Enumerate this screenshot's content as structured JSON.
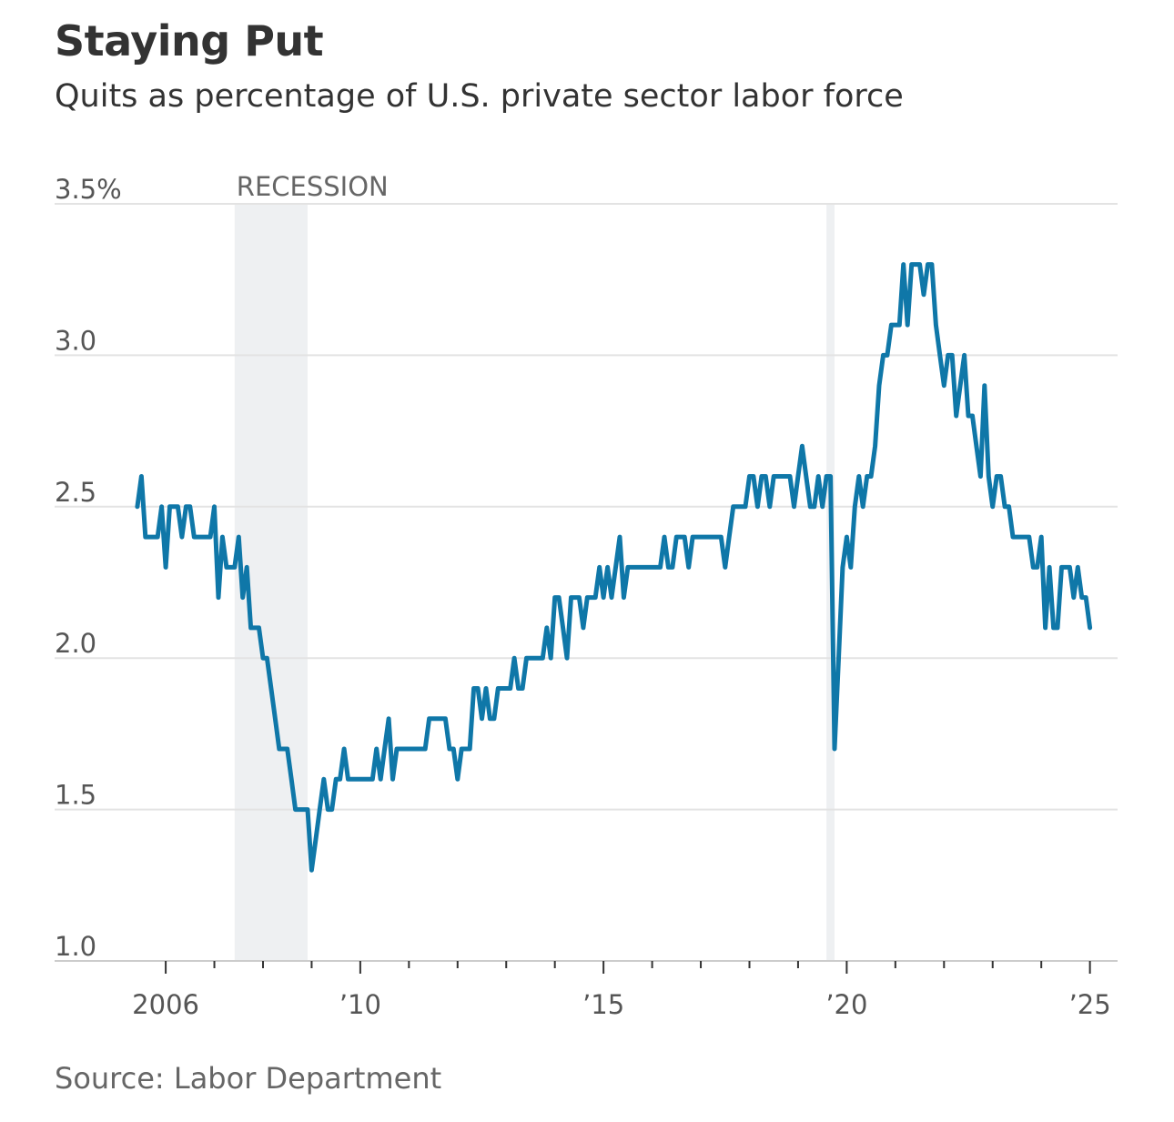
{
  "title": "Staying Put",
  "subtitle": "Quits as percentage of U.S. private sector labor force",
  "source": "Source: Labor Department",
  "chart_data": {
    "type": "line",
    "title": "Staying Put",
    "subtitle": "Quits as percentage of U.S. private sector labor force",
    "xlabel": "",
    "ylabel": "",
    "ylim": [
      1.0,
      3.5
    ],
    "xlim": [
      "2005-09",
      "2025-09"
    ],
    "yticks": [
      {
        "value": 3.5,
        "label": "3.5%"
      },
      {
        "value": 3.0,
        "label": "3.0"
      },
      {
        "value": 2.5,
        "label": "2.5"
      },
      {
        "value": 2.0,
        "label": "2.0"
      },
      {
        "value": 1.5,
        "label": "1.5"
      },
      {
        "value": 1.0,
        "label": "1.0"
      }
    ],
    "xticks": [
      {
        "value": "2006-07",
        "label": "2006"
      },
      {
        "value": "2010-07",
        "label": "’10"
      },
      {
        "value": "2015-07",
        "label": "’15"
      },
      {
        "value": "2020-07",
        "label": "’20"
      },
      {
        "value": "2025-07",
        "label": "’25"
      }
    ],
    "grid": true,
    "recessions": [
      {
        "start": "2007-12",
        "end": "2009-06",
        "label": "RECESSION"
      },
      {
        "start": "2020-02",
        "end": "2020-04",
        "label": ""
      }
    ],
    "series": [
      {
        "name": "",
        "color": "#0f77a8",
        "points": [
          [
            "2005-12",
            2.5
          ],
          [
            "2006-01",
            2.6
          ],
          [
            "2006-02",
            2.4
          ],
          [
            "2006-03",
            2.4
          ],
          [
            "2006-04",
            2.4
          ],
          [
            "2006-05",
            2.4
          ],
          [
            "2006-06",
            2.5
          ],
          [
            "2006-07",
            2.3
          ],
          [
            "2006-08",
            2.5
          ],
          [
            "2006-09",
            2.5
          ],
          [
            "2006-10",
            2.5
          ],
          [
            "2006-11",
            2.4
          ],
          [
            "2006-12",
            2.5
          ],
          [
            "2007-01",
            2.5
          ],
          [
            "2007-02",
            2.4
          ],
          [
            "2007-03",
            2.4
          ],
          [
            "2007-04",
            2.4
          ],
          [
            "2007-05",
            2.4
          ],
          [
            "2007-06",
            2.4
          ],
          [
            "2007-07",
            2.5
          ],
          [
            "2007-08",
            2.2
          ],
          [
            "2007-09",
            2.4
          ],
          [
            "2007-10",
            2.3
          ],
          [
            "2007-11",
            2.3
          ],
          [
            "2007-12",
            2.3
          ],
          [
            "2008-01",
            2.4
          ],
          [
            "2008-02",
            2.2
          ],
          [
            "2008-03",
            2.3
          ],
          [
            "2008-04",
            2.1
          ],
          [
            "2008-05",
            2.1
          ],
          [
            "2008-06",
            2.1
          ],
          [
            "2008-07",
            2.0
          ],
          [
            "2008-08",
            2.0
          ],
          [
            "2008-09",
            1.9
          ],
          [
            "2008-10",
            1.8
          ],
          [
            "2008-11",
            1.7
          ],
          [
            "2008-12",
            1.7
          ],
          [
            "2009-01",
            1.7
          ],
          [
            "2009-02",
            1.6
          ],
          [
            "2009-03",
            1.5
          ],
          [
            "2009-04",
            1.5
          ],
          [
            "2009-05",
            1.5
          ],
          [
            "2009-06",
            1.5
          ],
          [
            "2009-07",
            1.3
          ],
          [
            "2009-08",
            1.4
          ],
          [
            "2009-09",
            1.5
          ],
          [
            "2009-10",
            1.6
          ],
          [
            "2009-11",
            1.5
          ],
          [
            "2009-12",
            1.5
          ],
          [
            "2010-01",
            1.6
          ],
          [
            "2010-02",
            1.6
          ],
          [
            "2010-03",
            1.7
          ],
          [
            "2010-04",
            1.6
          ],
          [
            "2010-05",
            1.6
          ],
          [
            "2010-06",
            1.6
          ],
          [
            "2010-07",
            1.6
          ],
          [
            "2010-08",
            1.6
          ],
          [
            "2010-09",
            1.6
          ],
          [
            "2010-10",
            1.6
          ],
          [
            "2010-11",
            1.7
          ],
          [
            "2010-12",
            1.6
          ],
          [
            "2011-01",
            1.7
          ],
          [
            "2011-02",
            1.8
          ],
          [
            "2011-03",
            1.6
          ],
          [
            "2011-04",
            1.7
          ],
          [
            "2011-05",
            1.7
          ],
          [
            "2011-06",
            1.7
          ],
          [
            "2011-07",
            1.7
          ],
          [
            "2011-08",
            1.7
          ],
          [
            "2011-09",
            1.7
          ],
          [
            "2011-10",
            1.7
          ],
          [
            "2011-11",
            1.7
          ],
          [
            "2011-12",
            1.8
          ],
          [
            "2012-01",
            1.8
          ],
          [
            "2012-02",
            1.8
          ],
          [
            "2012-03",
            1.8
          ],
          [
            "2012-04",
            1.8
          ],
          [
            "2012-05",
            1.7
          ],
          [
            "2012-06",
            1.7
          ],
          [
            "2012-07",
            1.6
          ],
          [
            "2012-08",
            1.7
          ],
          [
            "2012-09",
            1.7
          ],
          [
            "2012-10",
            1.7
          ],
          [
            "2012-11",
            1.9
          ],
          [
            "2012-12",
            1.9
          ],
          [
            "2013-01",
            1.8
          ],
          [
            "2013-02",
            1.9
          ],
          [
            "2013-03",
            1.8
          ],
          [
            "2013-04",
            1.8
          ],
          [
            "2013-05",
            1.9
          ],
          [
            "2013-06",
            1.9
          ],
          [
            "2013-07",
            1.9
          ],
          [
            "2013-08",
            1.9
          ],
          [
            "2013-09",
            2.0
          ],
          [
            "2013-10",
            1.9
          ],
          [
            "2013-11",
            1.9
          ],
          [
            "2013-12",
            2.0
          ],
          [
            "2014-01",
            2.0
          ],
          [
            "2014-02",
            2.0
          ],
          [
            "2014-03",
            2.0
          ],
          [
            "2014-04",
            2.0
          ],
          [
            "2014-05",
            2.1
          ],
          [
            "2014-06",
            2.0
          ],
          [
            "2014-07",
            2.2
          ],
          [
            "2014-08",
            2.2
          ],
          [
            "2014-09",
            2.1
          ],
          [
            "2014-10",
            2.0
          ],
          [
            "2014-11",
            2.2
          ],
          [
            "2014-12",
            2.2
          ],
          [
            "2015-01",
            2.2
          ],
          [
            "2015-02",
            2.1
          ],
          [
            "2015-03",
            2.2
          ],
          [
            "2015-04",
            2.2
          ],
          [
            "2015-05",
            2.2
          ],
          [
            "2015-06",
            2.3
          ],
          [
            "2015-07",
            2.2
          ],
          [
            "2015-08",
            2.3
          ],
          [
            "2015-09",
            2.2
          ],
          [
            "2015-10",
            2.3
          ],
          [
            "2015-11",
            2.4
          ],
          [
            "2015-12",
            2.2
          ],
          [
            "2016-01",
            2.3
          ],
          [
            "2016-02",
            2.3
          ],
          [
            "2016-03",
            2.3
          ],
          [
            "2016-04",
            2.3
          ],
          [
            "2016-05",
            2.3
          ],
          [
            "2016-06",
            2.3
          ],
          [
            "2016-07",
            2.3
          ],
          [
            "2016-08",
            2.3
          ],
          [
            "2016-09",
            2.3
          ],
          [
            "2016-10",
            2.4
          ],
          [
            "2016-11",
            2.3
          ],
          [
            "2016-12",
            2.3
          ],
          [
            "2017-01",
            2.4
          ],
          [
            "2017-02",
            2.4
          ],
          [
            "2017-03",
            2.4
          ],
          [
            "2017-04",
            2.3
          ],
          [
            "2017-05",
            2.4
          ],
          [
            "2017-06",
            2.4
          ],
          [
            "2017-07",
            2.4
          ],
          [
            "2017-08",
            2.4
          ],
          [
            "2017-09",
            2.4
          ],
          [
            "2017-10",
            2.4
          ],
          [
            "2017-11",
            2.4
          ],
          [
            "2017-12",
            2.4
          ],
          [
            "2018-01",
            2.3
          ],
          [
            "2018-02",
            2.4
          ],
          [
            "2018-03",
            2.5
          ],
          [
            "2018-04",
            2.5
          ],
          [
            "2018-05",
            2.5
          ],
          [
            "2018-06",
            2.5
          ],
          [
            "2018-07",
            2.6
          ],
          [
            "2018-08",
            2.6
          ],
          [
            "2018-09",
            2.5
          ],
          [
            "2018-10",
            2.6
          ],
          [
            "2018-11",
            2.6
          ],
          [
            "2018-12",
            2.5
          ],
          [
            "2019-01",
            2.6
          ],
          [
            "2019-02",
            2.6
          ],
          [
            "2019-03",
            2.6
          ],
          [
            "2019-04",
            2.6
          ],
          [
            "2019-05",
            2.6
          ],
          [
            "2019-06",
            2.5
          ],
          [
            "2019-07",
            2.6
          ],
          [
            "2019-08",
            2.7
          ],
          [
            "2019-09",
            2.6
          ],
          [
            "2019-10",
            2.5
          ],
          [
            "2019-11",
            2.5
          ],
          [
            "2019-12",
            2.6
          ],
          [
            "2020-01",
            2.5
          ],
          [
            "2020-02",
            2.6
          ],
          [
            "2020-03",
            2.6
          ],
          [
            "2020-04",
            1.7
          ],
          [
            "2020-05",
            2.0
          ],
          [
            "2020-06",
            2.3
          ],
          [
            "2020-07",
            2.4
          ],
          [
            "2020-08",
            2.3
          ],
          [
            "2020-09",
            2.5
          ],
          [
            "2020-10",
            2.6
          ],
          [
            "2020-11",
            2.5
          ],
          [
            "2020-12",
            2.6
          ],
          [
            "2021-01",
            2.6
          ],
          [
            "2021-02",
            2.7
          ],
          [
            "2021-03",
            2.9
          ],
          [
            "2021-04",
            3.0
          ],
          [
            "2021-05",
            3.0
          ],
          [
            "2021-06",
            3.1
          ],
          [
            "2021-07",
            3.1
          ],
          [
            "2021-08",
            3.1
          ],
          [
            "2021-09",
            3.3
          ],
          [
            "2021-10",
            3.1
          ],
          [
            "2021-11",
            3.3
          ],
          [
            "2021-12",
            3.3
          ],
          [
            "2022-01",
            3.3
          ],
          [
            "2022-02",
            3.2
          ],
          [
            "2022-03",
            3.3
          ],
          [
            "2022-04",
            3.3
          ],
          [
            "2022-05",
            3.1
          ],
          [
            "2022-06",
            3.0
          ],
          [
            "2022-07",
            2.9
          ],
          [
            "2022-08",
            3.0
          ],
          [
            "2022-09",
            3.0
          ],
          [
            "2022-10",
            2.8
          ],
          [
            "2022-11",
            2.9
          ],
          [
            "2022-12",
            3.0
          ],
          [
            "2023-01",
            2.8
          ],
          [
            "2023-02",
            2.8
          ],
          [
            "2023-03",
            2.7
          ],
          [
            "2023-04",
            2.6
          ],
          [
            "2023-05",
            2.9
          ],
          [
            "2023-06",
            2.6
          ],
          [
            "2023-07",
            2.5
          ],
          [
            "2023-08",
            2.6
          ],
          [
            "2023-09",
            2.6
          ],
          [
            "2023-10",
            2.5
          ],
          [
            "2023-11",
            2.5
          ],
          [
            "2023-12",
            2.4
          ],
          [
            "2024-01",
            2.4
          ],
          [
            "2024-02",
            2.4
          ],
          [
            "2024-03",
            2.4
          ],
          [
            "2024-04",
            2.4
          ],
          [
            "2024-05",
            2.3
          ],
          [
            "2024-06",
            2.3
          ],
          [
            "2024-07",
            2.4
          ],
          [
            "2024-08",
            2.1
          ],
          [
            "2024-09",
            2.3
          ],
          [
            "2024-10",
            2.1
          ],
          [
            "2024-11",
            2.1
          ],
          [
            "2024-12",
            2.3
          ],
          [
            "2025-01",
            2.3
          ],
          [
            "2025-02",
            2.3
          ],
          [
            "2025-03",
            2.2
          ],
          [
            "2025-04",
            2.3
          ],
          [
            "2025-05",
            2.2
          ],
          [
            "2025-06",
            2.2
          ],
          [
            "2025-07",
            2.1
          ]
        ]
      }
    ]
  }
}
